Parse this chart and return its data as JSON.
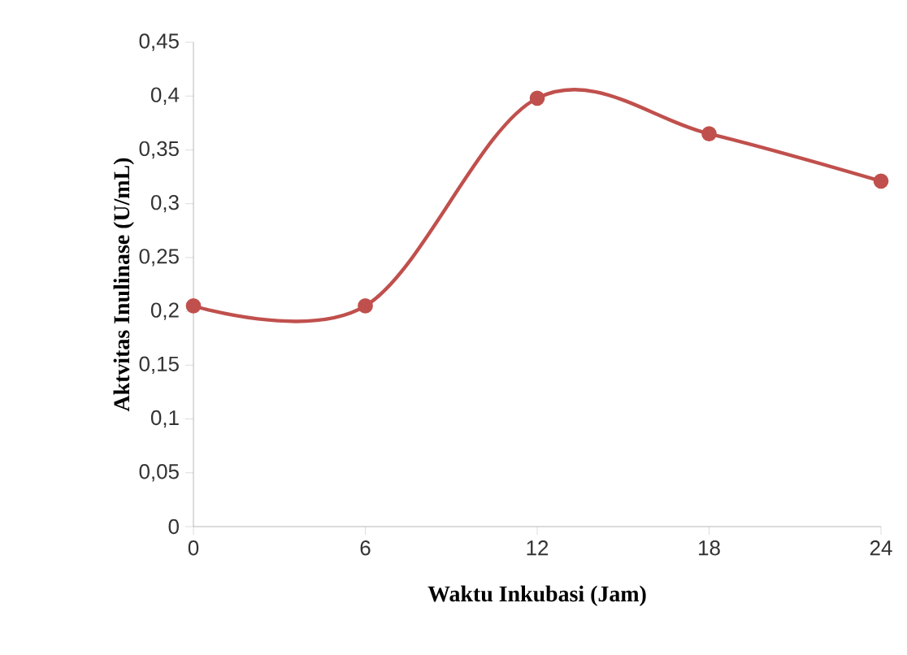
{
  "chart_data": {
    "type": "line",
    "xlabel": "Waktu Inkubasi (Jam)",
    "ylabel": "Aktvitas Inulinase (U/mL)",
    "x": [
      0,
      6,
      12,
      18,
      24
    ],
    "series": [
      {
        "color": "#c0504d",
        "values": [
          0.205,
          0.205,
          0.398,
          0.365,
          0.321
        ]
      }
    ],
    "xlim": [
      0,
      24
    ],
    "xticks": [
      0,
      6,
      12,
      18,
      24
    ],
    "ylim": [
      0,
      0.45
    ],
    "yticks": [
      0,
      {
        "value": 0.05,
        "label": "0,05"
      },
      {
        "value": 0.1,
        "label": "0,1"
      },
      {
        "value": 0.15,
        "label": "0,15"
      },
      {
        "value": 0.2,
        "label": "0,2"
      },
      {
        "value": 0.25,
        "label": "0,25"
      },
      {
        "value": 0.3,
        "label": "0,3"
      },
      {
        "value": 0.35,
        "label": "0,35"
      },
      {
        "value": 0.4,
        "label": "0,4"
      },
      {
        "value": 0.45,
        "label": "0,45"
      }
    ],
    "marker": "circle",
    "line_style": "solid",
    "grid": false
  }
}
